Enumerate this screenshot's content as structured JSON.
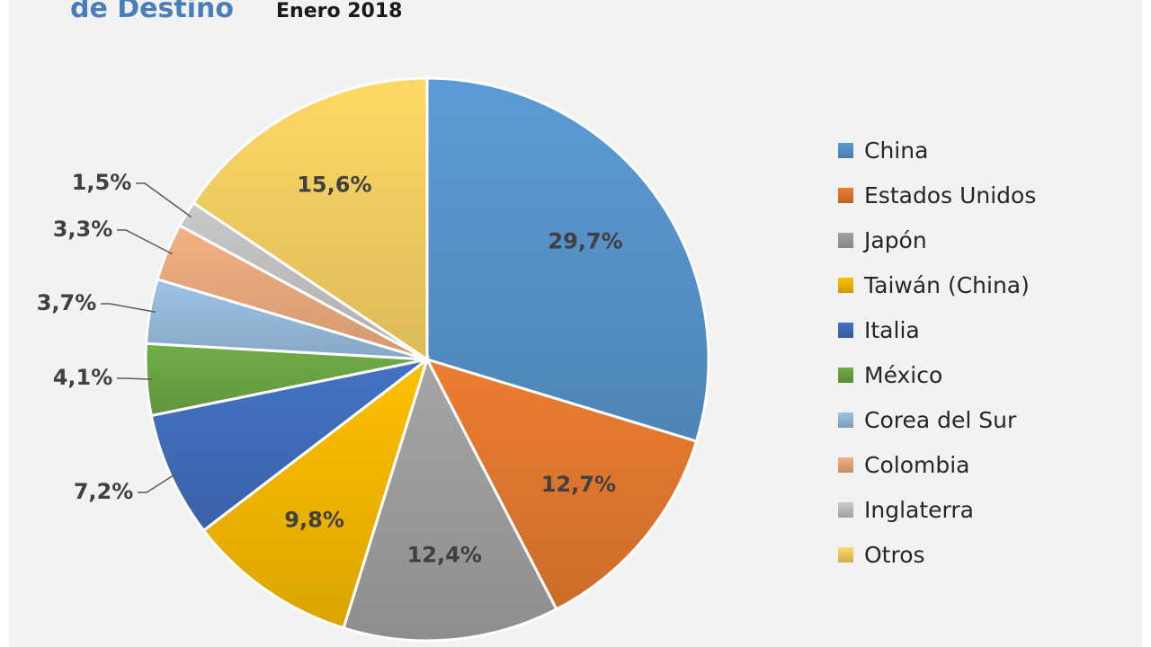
{
  "chart_data": {
    "type": "pie",
    "title": "de Destino",
    "subtitle": "Enero 2018",
    "categories": [
      "China",
      "Estados Unidos",
      "Japón",
      "Taiwán (China)",
      "Italia",
      "México",
      "Corea del Sur",
      "Colombia",
      "Inglaterra",
      "Otros"
    ],
    "values": [
      29.7,
      12.7,
      12.4,
      9.8,
      7.2,
      4.1,
      3.7,
      3.3,
      1.5,
      15.6
    ],
    "labels": [
      "29,7%",
      "12,7%",
      "12,4%",
      "9,8%",
      "7,2%",
      "4,1%",
      "3,7%",
      "3,3%",
      "1,5%",
      "15,6%"
    ],
    "colors": [
      "#5b9bd5",
      "#ed7d31",
      "#a5a5a5",
      "#ffc000",
      "#4472c4",
      "#70ad47",
      "#9dc3e6",
      "#f4b183",
      "#c9c9c9",
      "#ffd966"
    ],
    "legend_position": "right"
  }
}
